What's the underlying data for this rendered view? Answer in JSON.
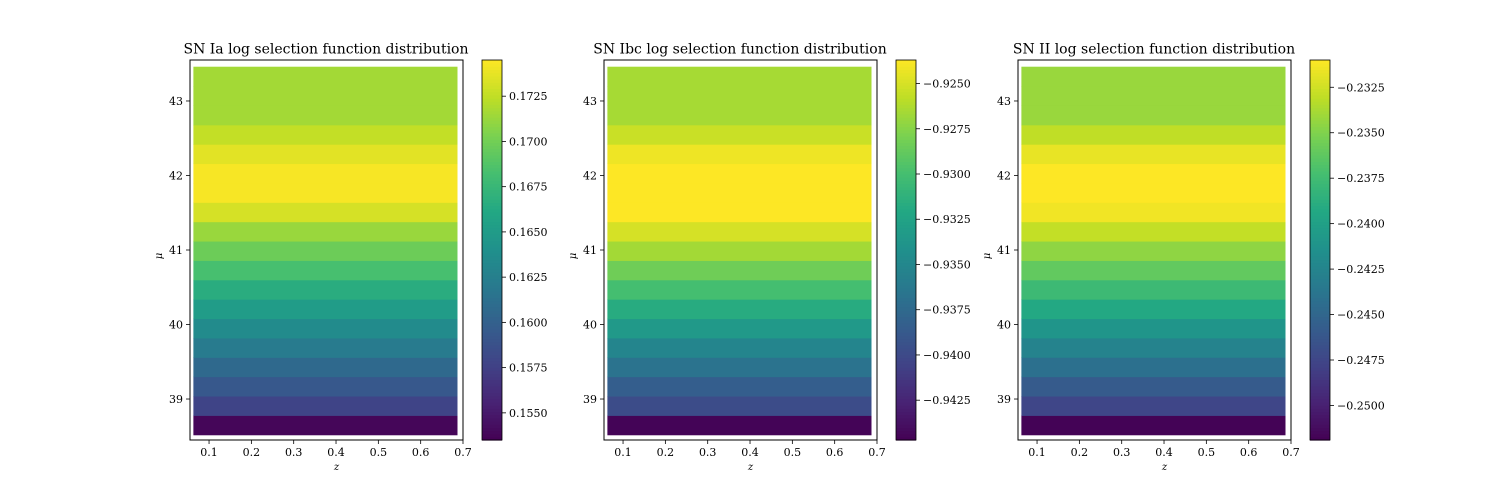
{
  "chart_data": [
    {
      "type": "heatmap",
      "title": "SN Ia log selection function distribution",
      "xlabel": "z",
      "ylabel": "μ",
      "xlim": [
        0.055,
        0.7
      ],
      "ylim": [
        38.45,
        43.55
      ],
      "xticks": [
        "0.1",
        "0.2",
        "0.3",
        "0.4",
        "0.5",
        "0.6",
        "0.7"
      ],
      "yticks": [
        "39",
        "40",
        "41",
        "42",
        "43"
      ],
      "colormap": "viridis",
      "data_x_range": [
        0.063,
        0.687
      ],
      "rows_mu": [
        38.65,
        38.91,
        39.17,
        39.43,
        39.69,
        39.95,
        40.21,
        40.47,
        40.73,
        40.99,
        41.25,
        41.51,
        41.77,
        42.03,
        42.29,
        42.55,
        42.81,
        43.07,
        43.33
      ],
      "rows_value": [
        0.1538,
        0.1578,
        0.1593,
        0.1607,
        0.1622,
        0.1636,
        0.1651,
        0.1666,
        0.1683,
        0.1698,
        0.1713,
        0.1732,
        0.1743,
        0.1743,
        0.1736,
        0.1726,
        0.1716,
        0.1716,
        0.1716
      ],
      "colorbar": {
        "vmin": 0.1535,
        "vmax": 0.1745,
        "ticks": [
          "0.1550",
          "0.1575",
          "0.1600",
          "0.1625",
          "0.1650",
          "0.1675",
          "0.1700",
          "0.1725"
        ]
      }
    },
    {
      "type": "heatmap",
      "title": "SN Ibc log selection function distribution",
      "xlabel": "z",
      "ylabel": "μ",
      "xlim": [
        0.055,
        0.7
      ],
      "ylim": [
        38.45,
        43.55
      ],
      "xticks": [
        "0.1",
        "0.2",
        "0.3",
        "0.4",
        "0.5",
        "0.6",
        "0.7"
      ],
      "yticks": [
        "39",
        "40",
        "41",
        "42",
        "43"
      ],
      "colormap": "viridis",
      "data_x_range": [
        0.063,
        0.687
      ],
      "rows_mu": [
        38.65,
        38.91,
        39.17,
        39.43,
        39.69,
        39.95,
        40.21,
        40.47,
        40.73,
        40.99,
        41.25,
        41.51,
        41.77,
        42.03,
        42.29,
        42.55,
        42.81,
        43.07,
        43.33
      ],
      "rows_value": [
        -0.9445,
        -0.9398,
        -0.9384,
        -0.9367,
        -0.9352,
        -0.9334,
        -0.9317,
        -0.93,
        -0.9283,
        -0.9266,
        -0.925,
        -0.9237,
        -0.9235,
        -0.9235,
        -0.9242,
        -0.9254,
        -0.9265,
        -0.9265,
        -0.9265
      ],
      "colorbar": {
        "vmin": -0.9447,
        "vmax": -0.9237,
        "ticks": [
          "−0.9425",
          "−0.9400",
          "−0.9375",
          "−0.9350",
          "−0.9325",
          "−0.9300",
          "−0.9275",
          "−0.9250"
        ]
      }
    },
    {
      "type": "heatmap",
      "title": "SN II log selection function distribution",
      "xlabel": "z",
      "ylabel": "μ",
      "xlim": [
        0.055,
        0.7
      ],
      "ylim": [
        38.45,
        43.55
      ],
      "xticks": [
        "0.1",
        "0.2",
        "0.3",
        "0.4",
        "0.5",
        "0.6",
        "0.7"
      ],
      "yticks": [
        "39",
        "40",
        "41",
        "42",
        "43"
      ],
      "colormap": "viridis",
      "data_x_range": [
        0.063,
        0.687
      ],
      "rows_mu": [
        38.65,
        38.91,
        39.17,
        39.43,
        39.69,
        39.95,
        40.21,
        40.47,
        40.73,
        40.99,
        41.25,
        41.51,
        41.77,
        42.03,
        42.29,
        42.55,
        42.81,
        43.07,
        43.33
      ],
      "rows_value": [
        -0.2518,
        -0.2475,
        -0.2459,
        -0.2442,
        -0.2426,
        -0.241,
        -0.2393,
        -0.2377,
        -0.2361,
        -0.2345,
        -0.2329,
        -0.2314,
        -0.231,
        -0.231,
        -0.2317,
        -0.233,
        -0.2342,
        -0.2342,
        -0.2342
      ],
      "colorbar": {
        "vmin": -0.2519,
        "vmax": -0.231,
        "ticks": [
          "−0.2500",
          "−0.2475",
          "−0.2450",
          "−0.2425",
          "−0.2400",
          "−0.2375",
          "−0.2350",
          "−0.2325"
        ]
      }
    }
  ]
}
